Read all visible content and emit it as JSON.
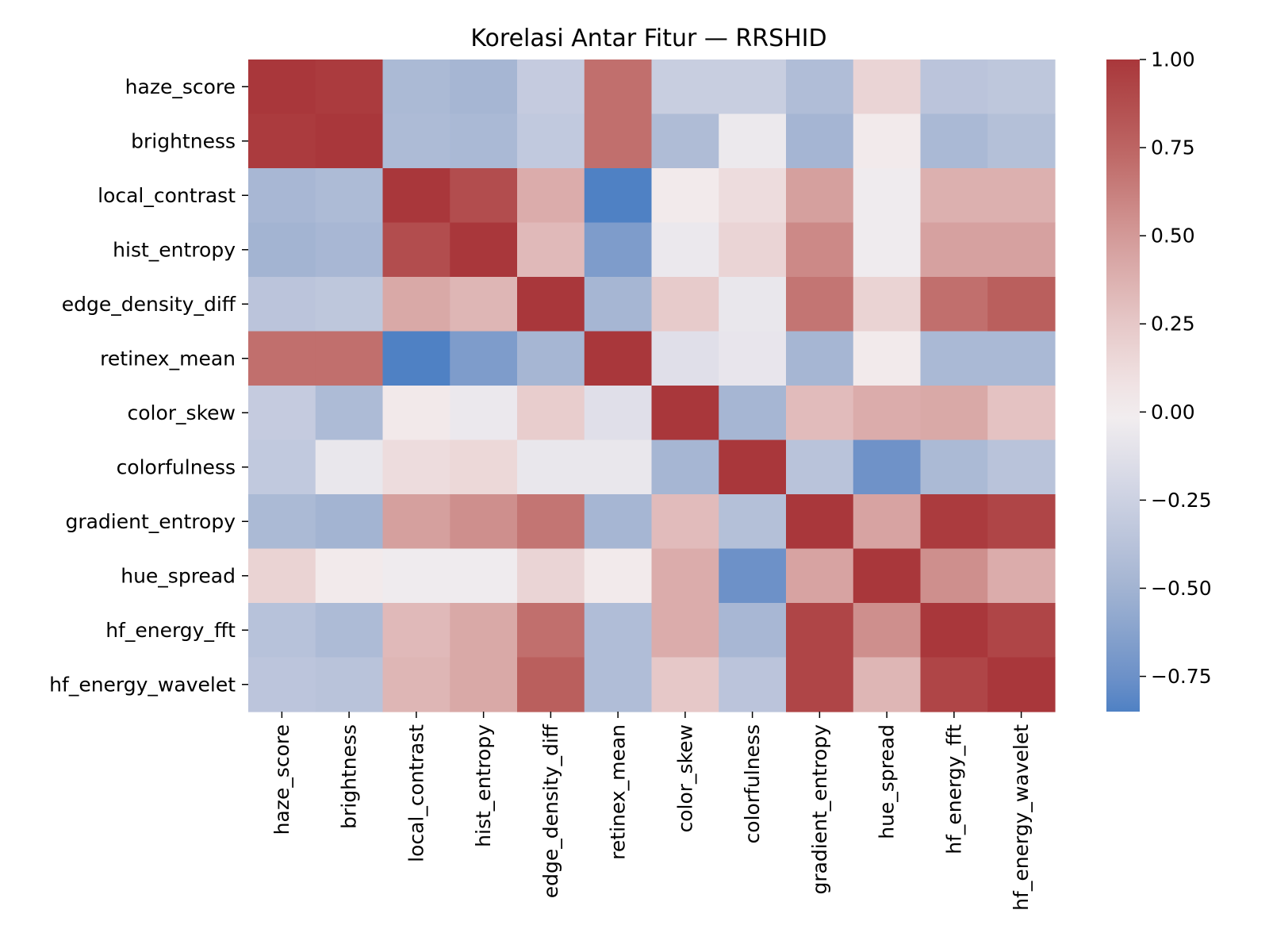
{
  "chart_data": {
    "type": "heatmap",
    "title": "Korelasi Antar Fitur — RRSHID",
    "xlabel": "",
    "ylabel": "",
    "rows": [
      "haze_score",
      "brightness",
      "local_contrast",
      "hist_entropy",
      "edge_density_diff",
      "retinex_mean",
      "color_skew",
      "colorfulness",
      "gradient_entropy",
      "hue_spread",
      "hf_energy_fft",
      "hf_energy_wavelet"
    ],
    "columns": [
      "haze_score",
      "brightness",
      "local_contrast",
      "hist_entropy",
      "edge_density_diff",
      "retinex_mean",
      "color_skew",
      "colorfulness",
      "gradient_entropy",
      "hue_spread",
      "hf_energy_fft",
      "hf_energy_wavelet"
    ],
    "values": [
      [
        1.0,
        0.98,
        -0.45,
        -0.48,
        -0.3,
        0.7,
        -0.28,
        -0.28,
        -0.42,
        0.17,
        -0.36,
        -0.34
      ],
      [
        0.98,
        1.0,
        -0.44,
        -0.46,
        -0.32,
        0.7,
        -0.43,
        -0.05,
        -0.49,
        0.03,
        -0.46,
        -0.4
      ],
      [
        -0.47,
        -0.44,
        1.0,
        0.88,
        0.4,
        -0.85,
        0.03,
        0.12,
        0.47,
        -0.03,
        0.38,
        0.38
      ],
      [
        -0.5,
        -0.47,
        0.88,
        1.0,
        0.33,
        -0.67,
        -0.06,
        0.17,
        0.58,
        -0.03,
        0.46,
        0.46
      ],
      [
        -0.36,
        -0.34,
        0.42,
        0.35,
        1.0,
        -0.48,
        0.23,
        -0.07,
        0.67,
        0.18,
        0.7,
        0.78
      ],
      [
        0.7,
        0.7,
        -0.85,
        -0.67,
        -0.48,
        1.0,
        -0.13,
        -0.08,
        -0.48,
        0.03,
        -0.46,
        -0.46
      ],
      [
        -0.3,
        -0.44,
        0.04,
        -0.06,
        0.22,
        -0.13,
        1.0,
        -0.48,
        0.32,
        0.4,
        0.42,
        0.28
      ],
      [
        -0.32,
        -0.07,
        0.12,
        0.15,
        -0.07,
        -0.07,
        -0.48,
        1.0,
        -0.37,
        -0.74,
        -0.45,
        -0.37
      ],
      [
        -0.45,
        -0.5,
        0.47,
        0.55,
        0.67,
        -0.48,
        0.32,
        -0.4,
        1.0,
        0.45,
        0.98,
        0.92
      ],
      [
        0.18,
        0.03,
        -0.03,
        -0.03,
        0.17,
        0.03,
        0.4,
        -0.75,
        0.45,
        1.0,
        0.55,
        0.4
      ],
      [
        -0.38,
        -0.44,
        0.33,
        0.42,
        0.7,
        -0.42,
        0.4,
        -0.47,
        0.92,
        0.55,
        1.0,
        0.92
      ],
      [
        -0.35,
        -0.37,
        0.35,
        0.42,
        0.78,
        -0.42,
        0.25,
        -0.36,
        0.92,
        0.35,
        0.92,
        1.0
      ]
    ],
    "colorbar": {
      "ticks": [
        1.0,
        0.75,
        0.5,
        0.25,
        0.0,
        -0.25,
        -0.5,
        -0.75
      ],
      "tick_labels": [
        "1.00",
        "0.75",
        "0.50",
        "0.25",
        "0.00",
        "−0.25",
        "−0.50",
        "−0.75"
      ],
      "vmin": -0.85,
      "vmax": 1.0
    },
    "colormap": {
      "name": "vlag",
      "stops": [
        {
          "v": -1.0,
          "color": "#2369bd"
        },
        {
          "v": -0.75,
          "color": "#6d91c8"
        },
        {
          "v": -0.5,
          "color": "#a3b4d2"
        },
        {
          "v": -0.25,
          "color": "#cdd1e2"
        },
        {
          "v": 0.0,
          "color": "#f4eff0"
        },
        {
          "v": 0.25,
          "color": "#e6c8c8"
        },
        {
          "v": 0.5,
          "color": "#d39a98"
        },
        {
          "v": 0.75,
          "color": "#bc6462"
        },
        {
          "v": 1.0,
          "color": "#a9373b"
        }
      ]
    }
  }
}
